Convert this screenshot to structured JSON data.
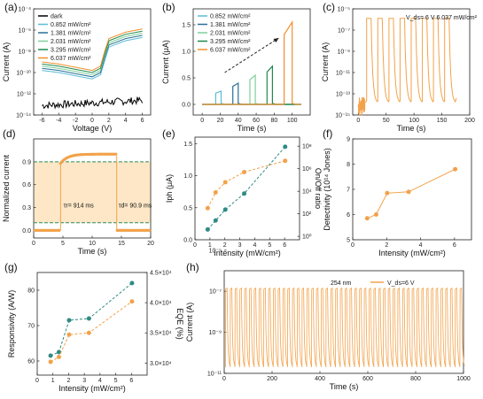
{
  "colors": {
    "dark": "#000000",
    "s1": "#5bbcd6",
    "s2": "#2a6f97",
    "s3": "#7fcf9a",
    "s4": "#1f8a4c",
    "s5": "#f28e2b",
    "orange": "#f2a24a",
    "teal": "#2f8a84",
    "dashed_green": "#2e8b57",
    "shade": "#fde7c7"
  },
  "panels": {
    "a": {
      "label": "(a)",
      "xlabel": "Voltage (V)",
      "ylabel": "Current (A)"
    },
    "b": {
      "label": "(b)",
      "xlabel": "Time (s)",
      "ylabel": "Current (μA)"
    },
    "c": {
      "label": "(c)",
      "xlabel": "Time (s)",
      "ylabel": "Current (A)",
      "annotation": "V_ds= 6 V  6.037 mW/cm²"
    },
    "d": {
      "label": "(d)",
      "xlabel": "Time (s)",
      "ylabel": "Normalized current",
      "tau_r": "τr= 914 ms",
      "tau_d": "τd= 90.9 ms"
    },
    "e": {
      "label": "(e)",
      "xlabel": "Intensity (mW/cm²)",
      "ylabel_left": "Iph (μA)",
      "ylabel_right": "On/Off ratio"
    },
    "f": {
      "label": "(f)",
      "xlabel": "Intensity (mW/cm²)",
      "ylabel": "Detectivity (10¹⁴ Jones)"
    },
    "g": {
      "label": "(g)",
      "xlabel": "Intensity (mW/cm²)",
      "ylabel_left": "Responsivity (A/W)",
      "ylabel_right": "EQE (%)"
    },
    "h": {
      "label": "(h)",
      "xlabel": "Time (s)",
      "ylabel": "Current (A)",
      "annotation": "254 nm",
      "legend": "V_ds=6 V"
    }
  },
  "chart_data": [
    {
      "id": "a",
      "type": "line",
      "yscale": "log",
      "xlim": [
        -7,
        7
      ],
      "ylim_log10": [
        -14,
        -4
      ],
      "xticks": [
        "-6",
        "-4",
        "-2",
        "0",
        "2",
        "4",
        "6"
      ],
      "yticks": [
        "10⁻¹⁴",
        "10⁻¹²",
        "10⁻¹⁰",
        "10⁻⁸",
        "10⁻⁶",
        "10⁻⁴"
      ],
      "legend_placement": "top-left",
      "series": [
        {
          "name": "dark",
          "x": [
            -6,
            -4,
            -2,
            0,
            2,
            4,
            6
          ],
          "log10y": [
            -13.2,
            -13.1,
            -13.0,
            -13.2,
            -12.9,
            -12.8,
            -12.7
          ]
        },
        {
          "name": "0.852 mW/cm²",
          "x": [
            -6,
            -4,
            -2,
            0,
            1,
            1.5,
            2,
            4,
            6
          ],
          "log10y": [
            -9.8,
            -10.0,
            -10.3,
            -10.6,
            -10.2,
            -8.9,
            -7.6,
            -7.0,
            -6.7
          ]
        },
        {
          "name": "1.381 mW/cm²",
          "x": [
            -6,
            -4,
            -2,
            0,
            1,
            1.5,
            2,
            4,
            6
          ],
          "log10y": [
            -9.6,
            -9.8,
            -10.1,
            -10.4,
            -10.0,
            -8.6,
            -7.4,
            -6.8,
            -6.5
          ]
        },
        {
          "name": "2.031 mW/cm²",
          "x": [
            -6,
            -4,
            -2,
            0,
            1,
            1.5,
            2,
            4,
            6
          ],
          "log10y": [
            -9.4,
            -9.6,
            -9.9,
            -10.2,
            -9.8,
            -8.4,
            -7.2,
            -6.6,
            -6.3
          ]
        },
        {
          "name": "3.295 mW/cm²",
          "x": [
            -6,
            -4,
            -2,
            0,
            1,
            1.5,
            2,
            4,
            6
          ],
          "log10y": [
            -9.2,
            -9.4,
            -9.7,
            -10.0,
            -9.6,
            -8.2,
            -7.0,
            -6.4,
            -6.1
          ]
        },
        {
          "name": "6.037 mW/cm²",
          "x": [
            -6,
            -4,
            -2,
            0,
            1,
            1.5,
            2,
            4,
            6
          ],
          "log10y": [
            -9.0,
            -9.2,
            -9.5,
            -9.8,
            -9.4,
            -8.0,
            -6.8,
            -6.2,
            -5.9
          ]
        }
      ]
    },
    {
      "id": "b",
      "type": "line",
      "xlim": [
        -10,
        120
      ],
      "ylim": [
        -0.2,
        1.8
      ],
      "xticks": [
        0,
        20,
        40,
        60,
        80,
        100
      ],
      "yticks": [
        "0.0",
        "0.5",
        "1.0",
        "1.5"
      ],
      "legend_placement": "top-left",
      "series": [
        {
          "name": "0.852 mW/cm²",
          "on": 15,
          "off": 21,
          "peak": 0.25
        },
        {
          "name": "1.381 mW/cm²",
          "on": 34,
          "off": 40,
          "peak": 0.4
        },
        {
          "name": "2.031 mW/cm²",
          "on": 53,
          "off": 59,
          "peak": 0.55
        },
        {
          "name": "3.295 mW/cm²",
          "on": 72,
          "off": 78,
          "peak": 0.72
        },
        {
          "name": "6.037 mW/cm²",
          "on": 91,
          "off": 100,
          "peak": 1.55
        }
      ]
    },
    {
      "id": "c",
      "type": "line",
      "yscale": "log",
      "xlim": [
        -10,
        200
      ],
      "ylim_log10": [
        -15,
        -5
      ],
      "xticks": [
        0,
        50,
        100,
        150,
        200
      ],
      "yticks": [
        "10⁻¹⁵",
        "10⁻¹³",
        "10⁻¹¹",
        "10⁻⁹",
        "10⁻⁷",
        "10⁻⁵"
      ],
      "pulse_on": [
        15,
        35,
        55,
        75,
        95,
        115,
        135,
        155
      ],
      "pulse_width": 8,
      "on_log10": -5.9,
      "off_log10": -14.2
    },
    {
      "id": "d",
      "type": "line",
      "xlim": [
        0,
        20
      ],
      "ylim": [
        -0.1,
        1.2
      ],
      "xticks": [
        0,
        5,
        10,
        15,
        20
      ],
      "yticks": [
        "0.0",
        "0.3",
        "0.6",
        "0.9"
      ],
      "on_time": 4.6,
      "off_time": 14.2,
      "hi_line": 0.9,
      "lo_line": 0.1
    },
    {
      "id": "e",
      "type": "scatter",
      "xlim": [
        0,
        7
      ],
      "xticks": [
        0,
        1,
        2,
        3,
        4,
        5,
        6
      ],
      "left": {
        "name": "Iph",
        "ylim": [
          0,
          1.6
        ],
        "yticks": [
          "0.0",
          "0.5",
          "1.0",
          "1.5"
        ],
        "x": [
          0.852,
          1.381,
          2.031,
          3.295,
          6.037
        ],
        "y": [
          0.16,
          0.3,
          0.47,
          0.72,
          1.45
        ]
      },
      "right": {
        "name": "On/Off ratio",
        "ylim_log10": [
          -0.3,
          8.8
        ],
        "yticks": [
          "10⁰",
          "10²",
          "10⁴",
          "10⁶",
          "10⁸"
        ],
        "x": [
          0.852,
          1.381,
          2.031,
          3.295,
          6.037
        ],
        "log10y": [
          2.5,
          3.9,
          4.8,
          5.7,
          6.7
        ]
      }
    },
    {
      "id": "f",
      "type": "scatter",
      "xlim": [
        0,
        7
      ],
      "ylim": [
        5,
        9
      ],
      "xticks": [
        0,
        2,
        4,
        6
      ],
      "yticks": [
        "5",
        "6",
        "7",
        "8",
        "9"
      ],
      "x": [
        0.852,
        1.381,
        2.031,
        3.295,
        6.037
      ],
      "y": [
        5.85,
        6.0,
        6.85,
        6.9,
        7.8
      ]
    },
    {
      "id": "g",
      "type": "scatter",
      "xlim": [
        0,
        7
      ],
      "xticks": [
        0,
        1,
        2,
        3,
        4,
        5,
        6
      ],
      "left": {
        "name": "Responsivity",
        "ylim": [
          56,
          85
        ],
        "yticks": [
          "60",
          "70",
          "80"
        ],
        "x": [
          0.852,
          1.381,
          2.031,
          3.295,
          6.037
        ],
        "y": [
          61.5,
          62.5,
          71.5,
          72,
          82
        ]
      },
      "right": {
        "name": "EQE",
        "ylim": [
          2.8,
          4.5
        ],
        "yticks": [
          "3.0×10⁴",
          "3.5×10⁴",
          "4.0×10⁴",
          "4.5×10⁴"
        ],
        "x": [
          0.852,
          1.381,
          2.031,
          3.295,
          6.037
        ],
        "y": [
          3.02,
          3.1,
          3.47,
          3.5,
          4.02
        ]
      }
    },
    {
      "id": "h",
      "type": "line",
      "yscale": "log",
      "xlim": [
        0,
        1000
      ],
      "ylim_log10": [
        -11,
        -6
      ],
      "xticks": [
        0,
        200,
        400,
        600,
        800,
        1000
      ],
      "yticks": [
        "10⁻¹¹",
        "10⁻⁹",
        "10⁻⁷",
        "10⁻⁵"
      ],
      "period": 20,
      "on_log10": -6.9,
      "off_log10": -10.7
    }
  ]
}
